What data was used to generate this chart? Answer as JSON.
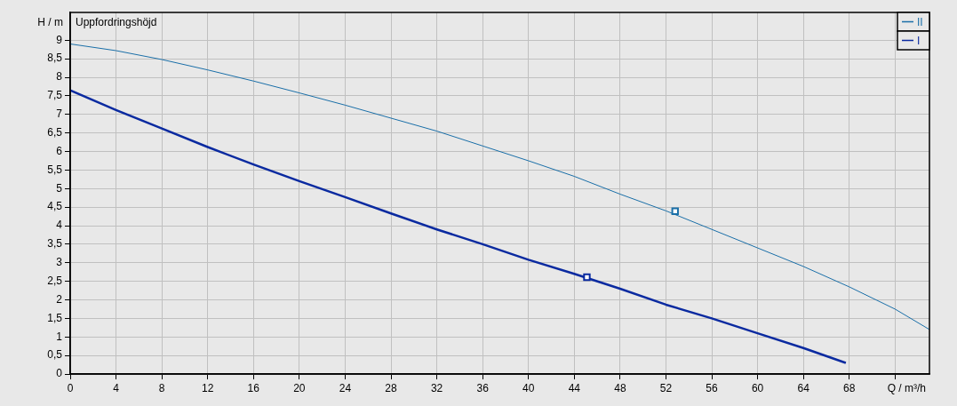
{
  "chart_data": {
    "type": "line",
    "title": "Uppfordringshöjd",
    "xlabel": "Q / m³/h",
    "ylabel": "H / m",
    "xlim": [
      0,
      75
    ],
    "ylim": [
      0,
      9.75
    ],
    "xticks": [
      0,
      4,
      8,
      12,
      16,
      20,
      24,
      28,
      32,
      36,
      40,
      44,
      48,
      52,
      56,
      60,
      64,
      68,
      {
        "value": 72,
        "label": null
      }
    ],
    "yticks": [
      0,
      {
        "value": 0.5,
        "label": "0,5"
      },
      1,
      {
        "value": 1.5,
        "label": "1,5"
      },
      2,
      {
        "value": 2.5,
        "label": "2,5"
      },
      3,
      {
        "value": 3.5,
        "label": "3,5"
      },
      4,
      {
        "value": 4.5,
        "label": "4,5"
      },
      5,
      {
        "value": 5.5,
        "label": "5,5"
      },
      6,
      {
        "value": 6.5,
        "label": "6,5"
      },
      7,
      {
        "value": 7.5,
        "label": "7,5"
      },
      8,
      {
        "value": 8.5,
        "label": "8,5"
      },
      9
    ],
    "grid": true,
    "legend": "top right",
    "marker": "none",
    "line_style": "solid",
    "series": [
      {
        "name": "II",
        "color": "#1a6fa8",
        "x": [
          0,
          4,
          8,
          12,
          16,
          20,
          24,
          28,
          32,
          36,
          40,
          44,
          48,
          52,
          56,
          60,
          64,
          68,
          72,
          75
        ],
        "values": [
          8.9,
          8.72,
          8.48,
          8.2,
          7.9,
          7.58,
          7.25,
          6.9,
          6.55,
          6.15,
          5.75,
          5.33,
          4.85,
          4.4,
          3.9,
          3.4,
          2.9,
          2.35,
          1.75,
          1.2
        ]
      },
      {
        "name": "I",
        "color": "#0a2aa0",
        "x": [
          0,
          4,
          8,
          12,
          16,
          20,
          24,
          28,
          32,
          36,
          40,
          44,
          48,
          52,
          56,
          60,
          64,
          67.7
        ],
        "values": [
          7.65,
          7.12,
          6.62,
          6.12,
          5.65,
          5.2,
          4.77,
          4.33,
          3.9,
          3.5,
          3.08,
          2.7,
          2.3,
          1.87,
          1.5,
          1.1,
          0.7,
          0.3
        ]
      },
      {
        "type": "scatter",
        "marker": "square",
        "color": "#1a6fa8",
        "x": [
          52.8
        ],
        "values": [
          4.39
        ]
      },
      {
        "type": "scatter",
        "marker": "square",
        "color": "#0a2aa0",
        "x": [
          45.1
        ],
        "values": [
          2.61
        ]
      }
    ]
  }
}
